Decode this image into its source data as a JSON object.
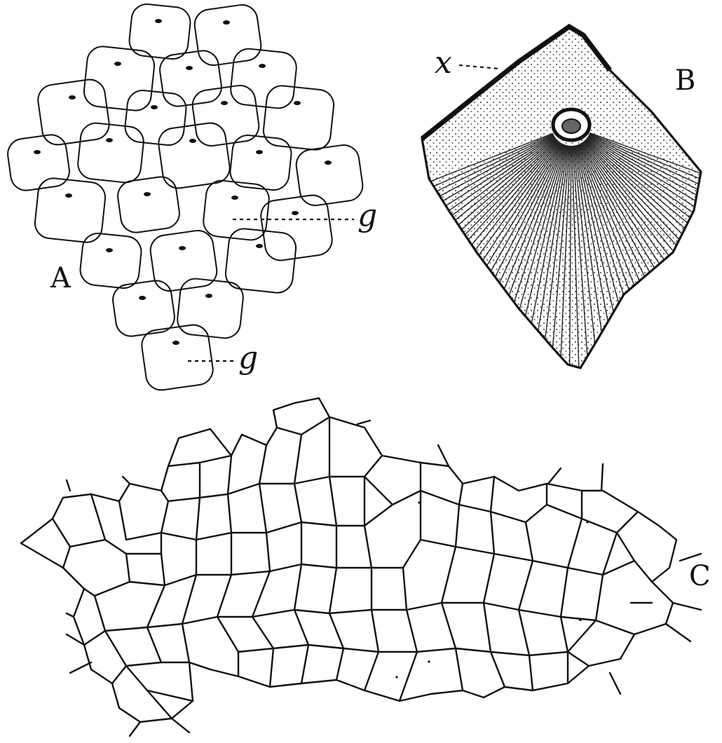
{
  "figure": {
    "panels": [
      {
        "id": "A",
        "label": "A",
        "callouts": [
          "g",
          "g"
        ]
      },
      {
        "id": "B",
        "label": "B",
        "callouts": [
          "x"
        ]
      },
      {
        "id": "C",
        "label": "C"
      }
    ]
  }
}
